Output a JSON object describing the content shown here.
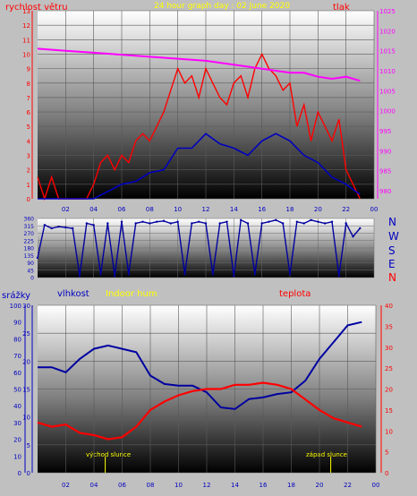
{
  "header": {
    "left_title": "rychlost větru",
    "center_title": "24 hour graph day : 02 June 2020",
    "right_title": "tlak"
  },
  "colors": {
    "background": "#c0c0c0",
    "wind": "#ff0000",
    "wind_avg": "#0000c0",
    "pressure": "#ff00ff",
    "direction": "#0000a0",
    "humidity": "#0000a0",
    "temperature": "#ff0000",
    "title_yellow": "#ffff00",
    "axis_red": "#ff0000",
    "axis_blue": "#0000c0"
  },
  "direction_labels": [
    "N",
    "W",
    "S",
    "E",
    "N"
  ],
  "bottom_header": {
    "rain_label": "srážky",
    "hum_label": "vlhkost",
    "indoor_label": "Indoor hum",
    "temp_label": "teplota"
  },
  "annotations": {
    "sunrise": "východ slunce",
    "sunset": "západ slunce"
  },
  "chart_data": [
    {
      "type": "line",
      "title": "24 hour graph day : 02 June 2020",
      "xlabel": "",
      "x_ticks": [
        "02",
        "04",
        "06",
        "08",
        "10",
        "12",
        "14",
        "16",
        "18",
        "20",
        "22",
        "00"
      ],
      "xlim": [
        0,
        24
      ],
      "y_left_label": "rychlost větru",
      "y_left_ticks": [
        0,
        1,
        2,
        3,
        4,
        5,
        6,
        7,
        8,
        9,
        10,
        11,
        12,
        13
      ],
      "y_left_lim": [
        0,
        13
      ],
      "y_right_label": "tlak",
      "y_right_ticks": [
        980,
        985,
        990,
        995,
        1000,
        1005,
        1010,
        1015,
        1020,
        1025
      ],
      "y_right_lim": [
        978,
        1025
      ],
      "series": [
        {
          "name": "",
          "axis": "left",
          "style": "gust",
          "x": [
            0,
            0.5,
            1,
            1.5,
            2,
            2.5,
            3,
            3.5,
            4,
            4.5,
            5,
            5.5,
            6,
            6.5,
            7,
            7.5,
            8,
            8.5,
            9,
            9.5,
            10,
            10.5,
            11,
            11.5,
            12,
            12.5,
            13,
            13.5,
            14,
            14.5,
            15,
            15.5,
            16,
            16.5,
            17,
            17.5,
            18,
            18.5,
            19,
            19.5,
            20,
            20.5,
            21,
            21.5,
            22,
            22.5,
            23
          ],
          "values": [
            1.5,
            0,
            1.5,
            0,
            0,
            0,
            0,
            0,
            1,
            2.5,
            3,
            2,
            3,
            2.5,
            4,
            4.5,
            4,
            5,
            6,
            7.5,
            9,
            8,
            8.5,
            7,
            9,
            8,
            7,
            6.5,
            8,
            8.5,
            7,
            9,
            10,
            9,
            8.5,
            7.5,
            8,
            5,
            6.5,
            4,
            6,
            5,
            4,
            5.5,
            2,
            1,
            0
          ]
        },
        {
          "name": "",
          "axis": "left",
          "style": "average",
          "x": [
            0,
            1,
            2,
            3,
            4,
            5,
            6,
            7,
            8,
            9,
            10,
            11,
            12,
            13,
            14,
            15,
            16,
            17,
            18,
            19,
            20,
            21,
            22,
            23
          ],
          "values": [
            0,
            0,
            0,
            0,
            0,
            0.5,
            1,
            1.2,
            1.8,
            2,
            3.5,
            3.5,
            4.5,
            3.8,
            3.5,
            3,
            4,
            4.5,
            4,
            3,
            2.5,
            1.5,
            1,
            0.3
          ]
        },
        {
          "name": "",
          "axis": "right",
          "style": "pressure",
          "x": [
            0,
            2,
            4,
            6,
            8,
            10,
            12,
            14,
            16,
            18,
            19,
            20,
            21,
            22,
            23
          ],
          "values": [
            1015.5,
            1015,
            1014.5,
            1014,
            1013.5,
            1013,
            1012.5,
            1011.5,
            1010.5,
            1009.5,
            1009.5,
            1008.5,
            1008,
            1008.5,
            1007.5
          ]
        }
      ]
    },
    {
      "type": "scatter",
      "title": "",
      "xlim": [
        0,
        24
      ],
      "y_ticks": [
        0,
        45,
        90,
        135,
        180,
        225,
        270,
        315,
        360
      ],
      "ylim": [
        0,
        360
      ],
      "series": [
        {
          "name": "",
          "x": [
            0,
            0.5,
            1,
            1.5,
            2,
            2.5,
            3,
            3.5,
            4,
            4.5,
            5,
            5.5,
            6,
            6.5,
            7,
            7.5,
            8,
            8.5,
            9,
            9.5,
            10,
            10.5,
            11,
            11.5,
            12,
            12.5,
            13,
            13.5,
            14,
            14.5,
            15,
            15.5,
            16,
            16.5,
            17,
            17.5,
            18,
            18.5,
            19,
            19.5,
            20,
            20.5,
            21,
            21.5,
            22,
            22.5,
            23
          ],
          "values": [
            120,
            320,
            300,
            310,
            305,
            300,
            10,
            330,
            320,
            20,
            330,
            10,
            340,
            20,
            330,
            340,
            330,
            340,
            345,
            330,
            340,
            20,
            330,
            340,
            330,
            20,
            330,
            340,
            10,
            350,
            330,
            20,
            330,
            340,
            350,
            330,
            20,
            340,
            330,
            350,
            340,
            330,
            340,
            10,
            330,
            250,
            300
          ]
        }
      ]
    },
    {
      "type": "line",
      "title": "",
      "x_ticks": [
        "02",
        "04",
        "06",
        "08",
        "10",
        "12",
        "14",
        "16",
        "18",
        "20",
        "22",
        "00"
      ],
      "xlim": [
        0,
        24
      ],
      "y_left_label": "vlhkost",
      "y_rain_ticks": [
        0,
        10,
        20,
        30,
        40,
        50,
        60,
        70,
        80,
        90,
        100
      ],
      "y_left_ticks": [
        0,
        5,
        10,
        15,
        20,
        25,
        30
      ],
      "y_left_lim": [
        0,
        30
      ],
      "y_right_label": "teplota",
      "y_right_ticks": [
        0,
        5,
        10,
        15,
        20,
        25,
        30,
        35,
        40
      ],
      "y_right_lim": [
        0,
        40
      ],
      "series": [
        {
          "name": "",
          "axis": "left",
          "x": [
            0,
            1,
            2,
            3,
            4,
            5,
            6,
            7,
            8,
            9,
            10,
            11,
            12,
            13,
            14,
            15,
            16,
            17,
            18,
            19,
            20,
            21,
            22,
            23
          ],
          "values": [
            63,
            63,
            60,
            68,
            74,
            76,
            74,
            72,
            58,
            53,
            52,
            52,
            48,
            39,
            38,
            44,
            45,
            47,
            48,
            55,
            68,
            78,
            88,
            90
          ]
        },
        {
          "name": "",
          "axis": "right",
          "x": [
            0,
            1,
            2,
            3,
            4,
            5,
            6,
            7,
            8,
            9,
            10,
            11,
            12,
            13,
            14,
            15,
            16,
            17,
            18,
            19,
            20,
            21,
            22,
            23
          ],
          "values": [
            12,
            11,
            11.5,
            9.5,
            9,
            8,
            8.5,
            11,
            15,
            17,
            18.5,
            19.5,
            20,
            20,
            21,
            21,
            21.5,
            21,
            20,
            17.5,
            15,
            13,
            12,
            11
          ]
        }
      ]
    }
  ]
}
